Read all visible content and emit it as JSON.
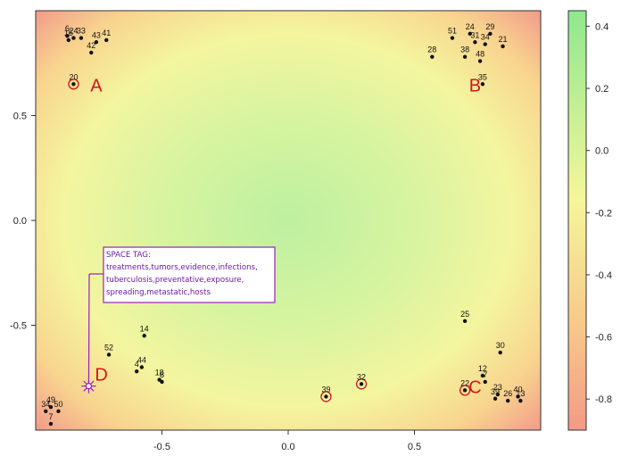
{
  "chart_data": [
    {
      "type": "scatter",
      "title": "",
      "xlabel": "",
      "ylabel": "",
      "xlim": [
        -1.0,
        1.0
      ],
      "ylim": [
        -1.0,
        1.0
      ],
      "x_ticks": [
        -0.5,
        0.0,
        0.5
      ],
      "x_tick_labels": [
        "-0.5",
        "0.0",
        "0.5"
      ],
      "y_ticks": [
        0.5,
        0.0,
        -0.5
      ],
      "y_tick_labels": [
        "0.5",
        "0.0",
        "-0.5"
      ],
      "grid": false,
      "background": "heat surface: green in the center, fading through yellow to red at the corners",
      "points": [
        {
          "label": "6",
          "x": -0.875,
          "y": 0.88
        },
        {
          "label": "16",
          "x": -0.87,
          "y": 0.86
        },
        {
          "label": "24",
          "x": -0.85,
          "y": 0.87
        },
        {
          "label": "33",
          "x": -0.82,
          "y": 0.87
        },
        {
          "label": "43",
          "x": -0.76,
          "y": 0.85
        },
        {
          "label": "41",
          "x": -0.72,
          "y": 0.86
        },
        {
          "label": "42",
          "x": -0.78,
          "y": 0.8
        },
        {
          "label": "20",
          "x": -0.85,
          "y": 0.65,
          "circled": true
        },
        {
          "label": "51",
          "x": 0.65,
          "y": 0.87
        },
        {
          "label": "24",
          "x": 0.72,
          "y": 0.89
        },
        {
          "label": "29",
          "x": 0.8,
          "y": 0.89
        },
        {
          "label": "31",
          "x": 0.74,
          "y": 0.85
        },
        {
          "label": "34",
          "x": 0.78,
          "y": 0.84
        },
        {
          "label": "21",
          "x": 0.85,
          "y": 0.83
        },
        {
          "label": "28",
          "x": 0.57,
          "y": 0.78
        },
        {
          "label": "38",
          "x": 0.7,
          "y": 0.78
        },
        {
          "label": "48",
          "x": 0.76,
          "y": 0.76
        },
        {
          "label": "35",
          "x": 0.77,
          "y": 0.65
        },
        {
          "label": "14",
          "x": -0.57,
          "y": -0.55
        },
        {
          "label": "52",
          "x": -0.71,
          "y": -0.64
        },
        {
          "label": "4",
          "x": -0.6,
          "y": -0.72
        },
        {
          "label": "44",
          "x": -0.58,
          "y": -0.7
        },
        {
          "label": "18",
          "x": -0.51,
          "y": -0.76
        },
        {
          "label": "8",
          "x": -0.5,
          "y": -0.77
        },
        {
          "label": "25",
          "x": 0.7,
          "y": -0.48
        },
        {
          "label": "30",
          "x": 0.84,
          "y": -0.63
        },
        {
          "label": "12",
          "x": 0.77,
          "y": -0.74
        },
        {
          "label": "7",
          "x": 0.78,
          "y": -0.77
        },
        {
          "label": "22",
          "x": 0.7,
          "y": -0.81,
          "circled": true
        },
        {
          "label": "23",
          "x": 0.83,
          "y": -0.83
        },
        {
          "label": "39",
          "x": 0.82,
          "y": -0.85
        },
        {
          "label": "26",
          "x": 0.87,
          "y": -0.86
        },
        {
          "label": "40",
          "x": 0.91,
          "y": -0.84
        },
        {
          "label": "13",
          "x": 0.92,
          "y": -0.86
        },
        {
          "label": "39",
          "x": 0.15,
          "y": -0.84,
          "circled": true
        },
        {
          "label": "32",
          "x": 0.29,
          "y": -0.78,
          "circled": true
        },
        {
          "label": "49",
          "x": -0.94,
          "y": -0.89
        },
        {
          "label": "34",
          "x": -0.96,
          "y": -0.91
        },
        {
          "label": "50",
          "x": -0.91,
          "y": -0.91
        },
        {
          "label": "7",
          "x": -0.94,
          "y": -0.97
        }
      ],
      "region_labels": [
        {
          "text": "A",
          "x": -0.76,
          "y": 0.65
        },
        {
          "text": "B",
          "x": 0.74,
          "y": 0.65
        },
        {
          "text": "C",
          "x": 0.74,
          "y": -0.79
        },
        {
          "text": "D",
          "x": -0.74,
          "y": -0.73
        }
      ],
      "annotation": {
        "target": {
          "x": -0.79,
          "y": -0.79
        },
        "lines": [
          "SPACE TAG:",
          "treatments,tumors,evidence,infections,",
          "tuberculosis,preventative,exposure,",
          "spreading,metastatic,hosts"
        ],
        "color": "#9a1fbd"
      }
    },
    {
      "type": "heatmap",
      "role": "colorbar",
      "ticks": [
        0.4,
        0.2,
        0.0,
        -0.2,
        -0.4,
        -0.6,
        -0.8
      ],
      "tick_labels": [
        "0.4",
        "0.2",
        "0.0",
        "-0.2",
        "-0.4",
        "-0.6",
        "-0.8"
      ],
      "range": [
        -0.9,
        0.45
      ],
      "colors": {
        "high": "#8ee88e",
        "mid": "#f6f69a",
        "low": "#f39a86"
      }
    }
  ]
}
